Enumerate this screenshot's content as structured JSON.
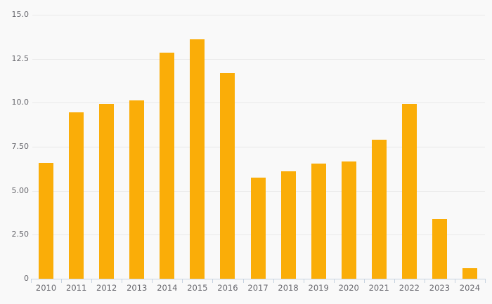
{
  "chart_data": {
    "type": "bar",
    "title": "",
    "xlabel": "",
    "ylabel": "",
    "categories": [
      "2010",
      "2011",
      "2012",
      "2013",
      "2014",
      "2015",
      "2016",
      "2017",
      "2018",
      "2019",
      "2020",
      "2021",
      "2022",
      "2023",
      "2024"
    ],
    "values": [
      6.6,
      9.45,
      9.95,
      10.15,
      12.85,
      13.6,
      11.7,
      5.75,
      6.1,
      6.55,
      6.65,
      7.9,
      9.95,
      3.4,
      0.6
    ],
    "ylim": [
      0,
      15
    ],
    "y_ticks": [
      {
        "value": 15,
        "label": "15.0"
      },
      {
        "value": 12.5,
        "label": "12.5"
      },
      {
        "value": 10,
        "label": "10.0"
      },
      {
        "value": 7.5,
        "label": "7.50"
      },
      {
        "value": 5,
        "label": "5.00"
      },
      {
        "value": 2.5,
        "label": "2.50"
      },
      {
        "value": 0,
        "label": "0"
      }
    ],
    "grid": true,
    "legend": null,
    "colors": {
      "bar": "#faad08",
      "background": "#f9f9f9",
      "gridline": "#e9e9e9",
      "axis": "#c6d2e0",
      "label_text": "#68686e"
    }
  }
}
